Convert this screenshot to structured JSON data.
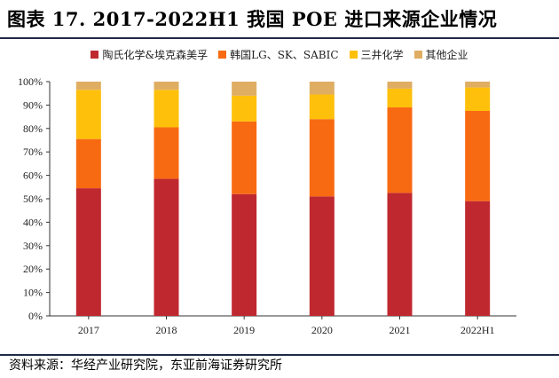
{
  "title": "图表 17. 2017-2022H1 我国 POE 进口来源企业情况",
  "source": "资料来源：华经产业研究院，东亚前海证券研究所",
  "chart_data": {
    "type": "bar",
    "stacked": true,
    "categories": [
      "2017",
      "2018",
      "2019",
      "2020",
      "2021",
      "2022H1"
    ],
    "series": [
      {
        "name": "陶氏化学&埃克森美孚",
        "color": "#c0282f",
        "values": [
          54.5,
          58.5,
          52.0,
          51.0,
          52.5,
          49.0
        ]
      },
      {
        "name": "韩国LG、SK、SABIC",
        "color": "#f86a12",
        "values": [
          21.0,
          22.0,
          31.0,
          33.0,
          36.5,
          38.5
        ]
      },
      {
        "name": "三井化学",
        "color": "#fec00a",
        "values": [
          21.0,
          16.0,
          11.0,
          10.5,
          8.0,
          10.0
        ]
      },
      {
        "name": "其他企业",
        "color": "#dfae63",
        "values": [
          3.5,
          3.5,
          6.0,
          5.5,
          3.0,
          2.5
        ]
      }
    ],
    "ylim": [
      0,
      100
    ],
    "yticks": [
      "0%",
      "10%",
      "20%",
      "30%",
      "40%",
      "50%",
      "60%",
      "70%",
      "80%",
      "90%",
      "100%"
    ],
    "legend_position": "top"
  }
}
